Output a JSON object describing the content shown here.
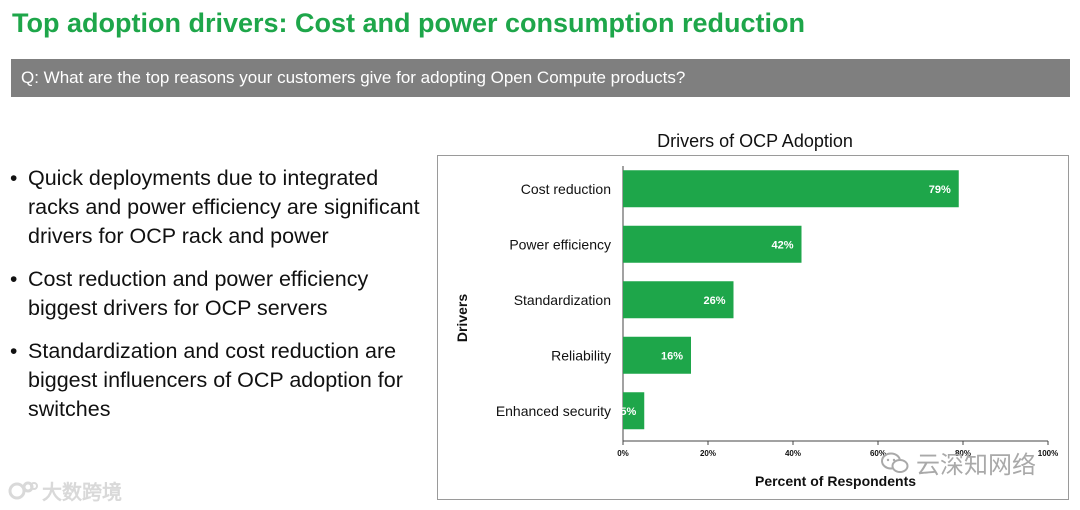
{
  "slide": {
    "title": "Top adoption drivers: Cost and power consumption reduction",
    "question": "Q: What are the top reasons your customers give for adopting Open Compute products?"
  },
  "bullets": [
    "Quick deployments due to integrated racks and power efficiency are significant drivers for OCP rack and power",
    "Cost reduction and power efficiency biggest drivers for OCP servers",
    "Standardization and cost reduction are biggest influencers of OCP adoption for switches"
  ],
  "bullet_glyph": "•",
  "watermarks": {
    "left_text": "大数跨境",
    "right_text": "云深知网络"
  },
  "colors": {
    "title": "#1ea64a",
    "bar": "#1ea64a",
    "question_bar": "#7f7f7f"
  },
  "chart_data": {
    "type": "bar",
    "orientation": "horizontal",
    "title": "Drivers of OCP Adoption",
    "xlabel": "Percent of Respondents",
    "ylabel": "Drivers",
    "categories": [
      "Cost reduction",
      "Power efficiency",
      "Standardization",
      "Reliability",
      "Enhanced security"
    ],
    "values": [
      79,
      42,
      26,
      16,
      5
    ],
    "value_labels": [
      "79%",
      "42%",
      "26%",
      "16%",
      "5%"
    ],
    "xlim": [
      0,
      100
    ],
    "xticks": [
      "0%",
      "20%",
      "40%",
      "60%",
      "80%",
      "100%"
    ],
    "xtick_values": [
      0,
      20,
      40,
      60,
      80,
      100
    ]
  }
}
